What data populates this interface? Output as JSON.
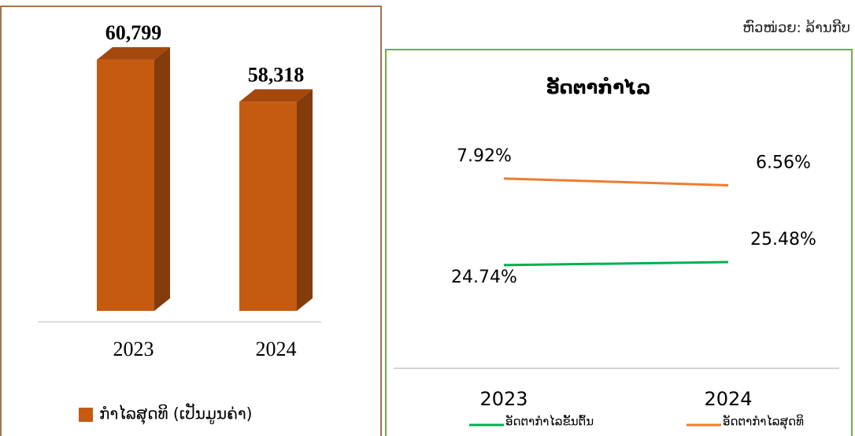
{
  "unit_note": "ຫົວໜ່ວຍ: ລ້ານກີບ",
  "chart_data": [
    {
      "type": "bar3d",
      "categories": [
        "2023",
        "2024"
      ],
      "values": [
        60799,
        58318
      ],
      "value_labels": [
        "60,799",
        "58,318"
      ],
      "series_name": "ກຳໄລສຸດທິ (ເປັນມູນຄ່າ)",
      "color": "#c55a11",
      "ylim": [
        46000,
        62000
      ]
    },
    {
      "type": "line",
      "title": "ອັດຕາກຳໄລ",
      "categories": [
        "2023",
        "2024"
      ],
      "series": [
        {
          "name": "ອັດຕາກຳໄລຂັ້ນຕົ້ນ",
          "color": "#00b050",
          "values": [
            24.74,
            25.48
          ],
          "value_labels": [
            "24.74%",
            "25.48%"
          ]
        },
        {
          "name": "ອັດຕາກຳໄລສຸດທິ",
          "color": "#ed7d31",
          "values": [
            7.92,
            6.56
          ],
          "value_labels": [
            "7.92%",
            "6.56%"
          ],
          "axis": "y2"
        }
      ],
      "ylim": [
        0,
        60
      ],
      "y2lim": [
        -30,
        20
      ]
    }
  ]
}
